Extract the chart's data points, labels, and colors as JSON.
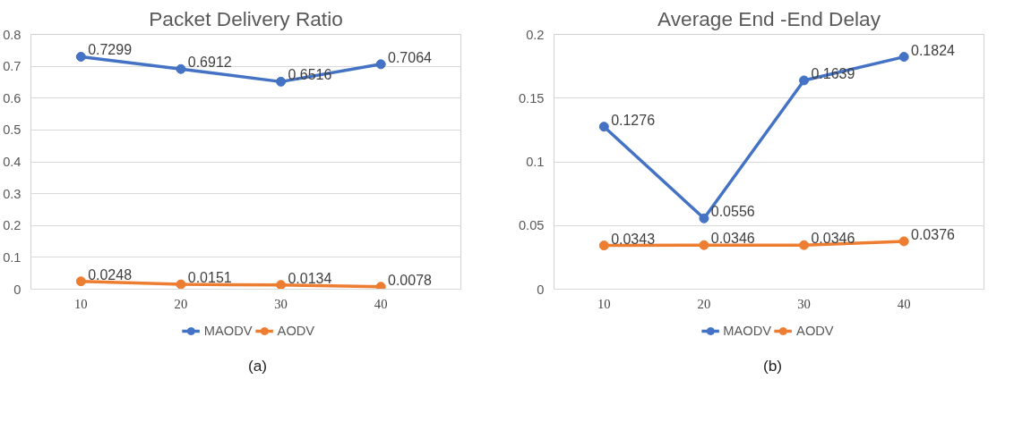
{
  "chart_data": [
    {
      "type": "line",
      "title": "Packet Delivery Ratio",
      "categories": [
        "10",
        "20",
        "30",
        "40"
      ],
      "series": [
        {
          "name": "MAODV",
          "color": "#4472c4",
          "values": [
            0.7299,
            0.6912,
            0.6516,
            0.7064
          ]
        },
        {
          "name": "AODV",
          "color": "#ed7d31",
          "values": [
            0.0248,
            0.0151,
            0.0134,
            0.0078
          ]
        }
      ],
      "ylim": [
        0,
        0.8
      ],
      "yticks": [
        0,
        0.1,
        0.2,
        0.3,
        0.4,
        0.5,
        0.6,
        0.7,
        0.8
      ],
      "grid": "y",
      "legend": "bottom",
      "marker": "circle",
      "line_style": "solid",
      "data_labels": true,
      "annotations": [
        "(a)"
      ]
    },
    {
      "type": "line",
      "title": "Average End -End Delay",
      "categories": [
        "10",
        "20",
        "30",
        "40"
      ],
      "series": [
        {
          "name": "MAODV",
          "color": "#4472c4",
          "values": [
            0.1276,
            0.0556,
            0.1639,
            0.1824
          ]
        },
        {
          "name": "AODV",
          "color": "#ed7d31",
          "values": [
            0.0343,
            0.0346,
            0.0346,
            0.0376
          ]
        }
      ],
      "ylim": [
        0,
        0.2
      ],
      "yticks": [
        0,
        0.05,
        0.1,
        0.15,
        0.2
      ],
      "grid": "y",
      "legend": "bottom",
      "marker": "circle",
      "line_style": "solid",
      "data_labels": true,
      "annotations": [
        "(b)"
      ]
    }
  ]
}
